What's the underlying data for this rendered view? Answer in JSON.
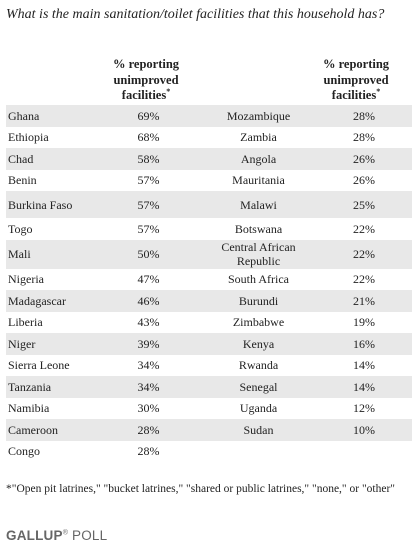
{
  "question": "What is the main sanitation/toilet facilities that this household has?",
  "chart_data": {
    "type": "table",
    "column_header_text": "% reporting unimproved facilities",
    "column_header_note": "*",
    "left_column": [
      {
        "country": "Ghana",
        "value": "69%"
      },
      {
        "country": "Ethiopia",
        "value": "68%"
      },
      {
        "country": "Chad",
        "value": "58%"
      },
      {
        "country": "Benin",
        "value": "57%"
      },
      {
        "country": "Burkina Faso",
        "value": "57%"
      },
      {
        "country": "Togo",
        "value": "57%"
      },
      {
        "country": "Mali",
        "value": "50%"
      },
      {
        "country": "Nigeria",
        "value": "47%"
      },
      {
        "country": "Madagascar",
        "value": "46%"
      },
      {
        "country": "Liberia",
        "value": "43%"
      },
      {
        "country": "Niger",
        "value": "39%"
      },
      {
        "country": "Sierra Leone",
        "value": "34%"
      },
      {
        "country": "Tanzania",
        "value": "34%"
      },
      {
        "country": "Namibia",
        "value": "30%"
      },
      {
        "country": "Cameroon",
        "value": "28%"
      },
      {
        "country": "Congo",
        "value": "28%"
      }
    ],
    "right_column": [
      {
        "country": "Mozambique",
        "value": "28%"
      },
      {
        "country": "Zambia",
        "value": "28%"
      },
      {
        "country": "Angola",
        "value": "26%"
      },
      {
        "country": "Mauritania",
        "value": "26%"
      },
      {
        "country": "Malawi",
        "value": "25%"
      },
      {
        "country": "Botswana",
        "value": "22%"
      },
      {
        "country": "Central African Republic",
        "value": "22%"
      },
      {
        "country": "South Africa",
        "value": "22%"
      },
      {
        "country": "Burundi",
        "value": "21%"
      },
      {
        "country": "Zimbabwe",
        "value": "19%"
      },
      {
        "country": "Kenya",
        "value": "16%"
      },
      {
        "country": "Rwanda",
        "value": "14%"
      },
      {
        "country": "Senegal",
        "value": "14%"
      },
      {
        "country": "Uganda",
        "value": "12%"
      },
      {
        "country": "Sudan",
        "value": "10%"
      }
    ]
  },
  "footnote": "*\"Open pit latrines,\" \"bucket latrines,\" \"shared or public latrines,\" \"none,\" or \"other\"",
  "logo": {
    "brand": "GALLUP",
    "suffix": "POLL",
    "mark": "®"
  },
  "colors": {
    "shaded_row": "#e8e8e8",
    "text": "#222222",
    "logo": "#666666"
  }
}
